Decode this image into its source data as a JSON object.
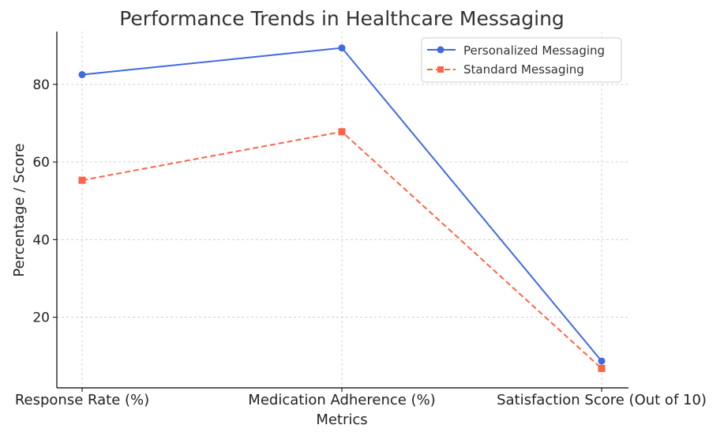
{
  "chart_data": {
    "type": "line",
    "title": "Performance Trends in Healthcare Messaging",
    "xlabel": "Metrics",
    "ylabel": "Percentage / Score",
    "categories": [
      "Response Rate (%)",
      "Medication Adherence (%)",
      "Satisfaction Score (Out of 10)"
    ],
    "ylim": [
      1.8,
      93.6
    ],
    "yticks": [
      20,
      40,
      60,
      80
    ],
    "grid": true,
    "legend": "top-right",
    "series": [
      {
        "name": "Personalized Messaging",
        "values": [
          82.5,
          89.4,
          8.7
        ],
        "color": "#4169e1",
        "line_style": "solid",
        "marker": "circle"
      },
      {
        "name": "Standard Messaging",
        "values": [
          55.3,
          67.8,
          6.8
        ],
        "color": "#ff6347",
        "line_style": "dashed",
        "marker": "square"
      }
    ]
  }
}
